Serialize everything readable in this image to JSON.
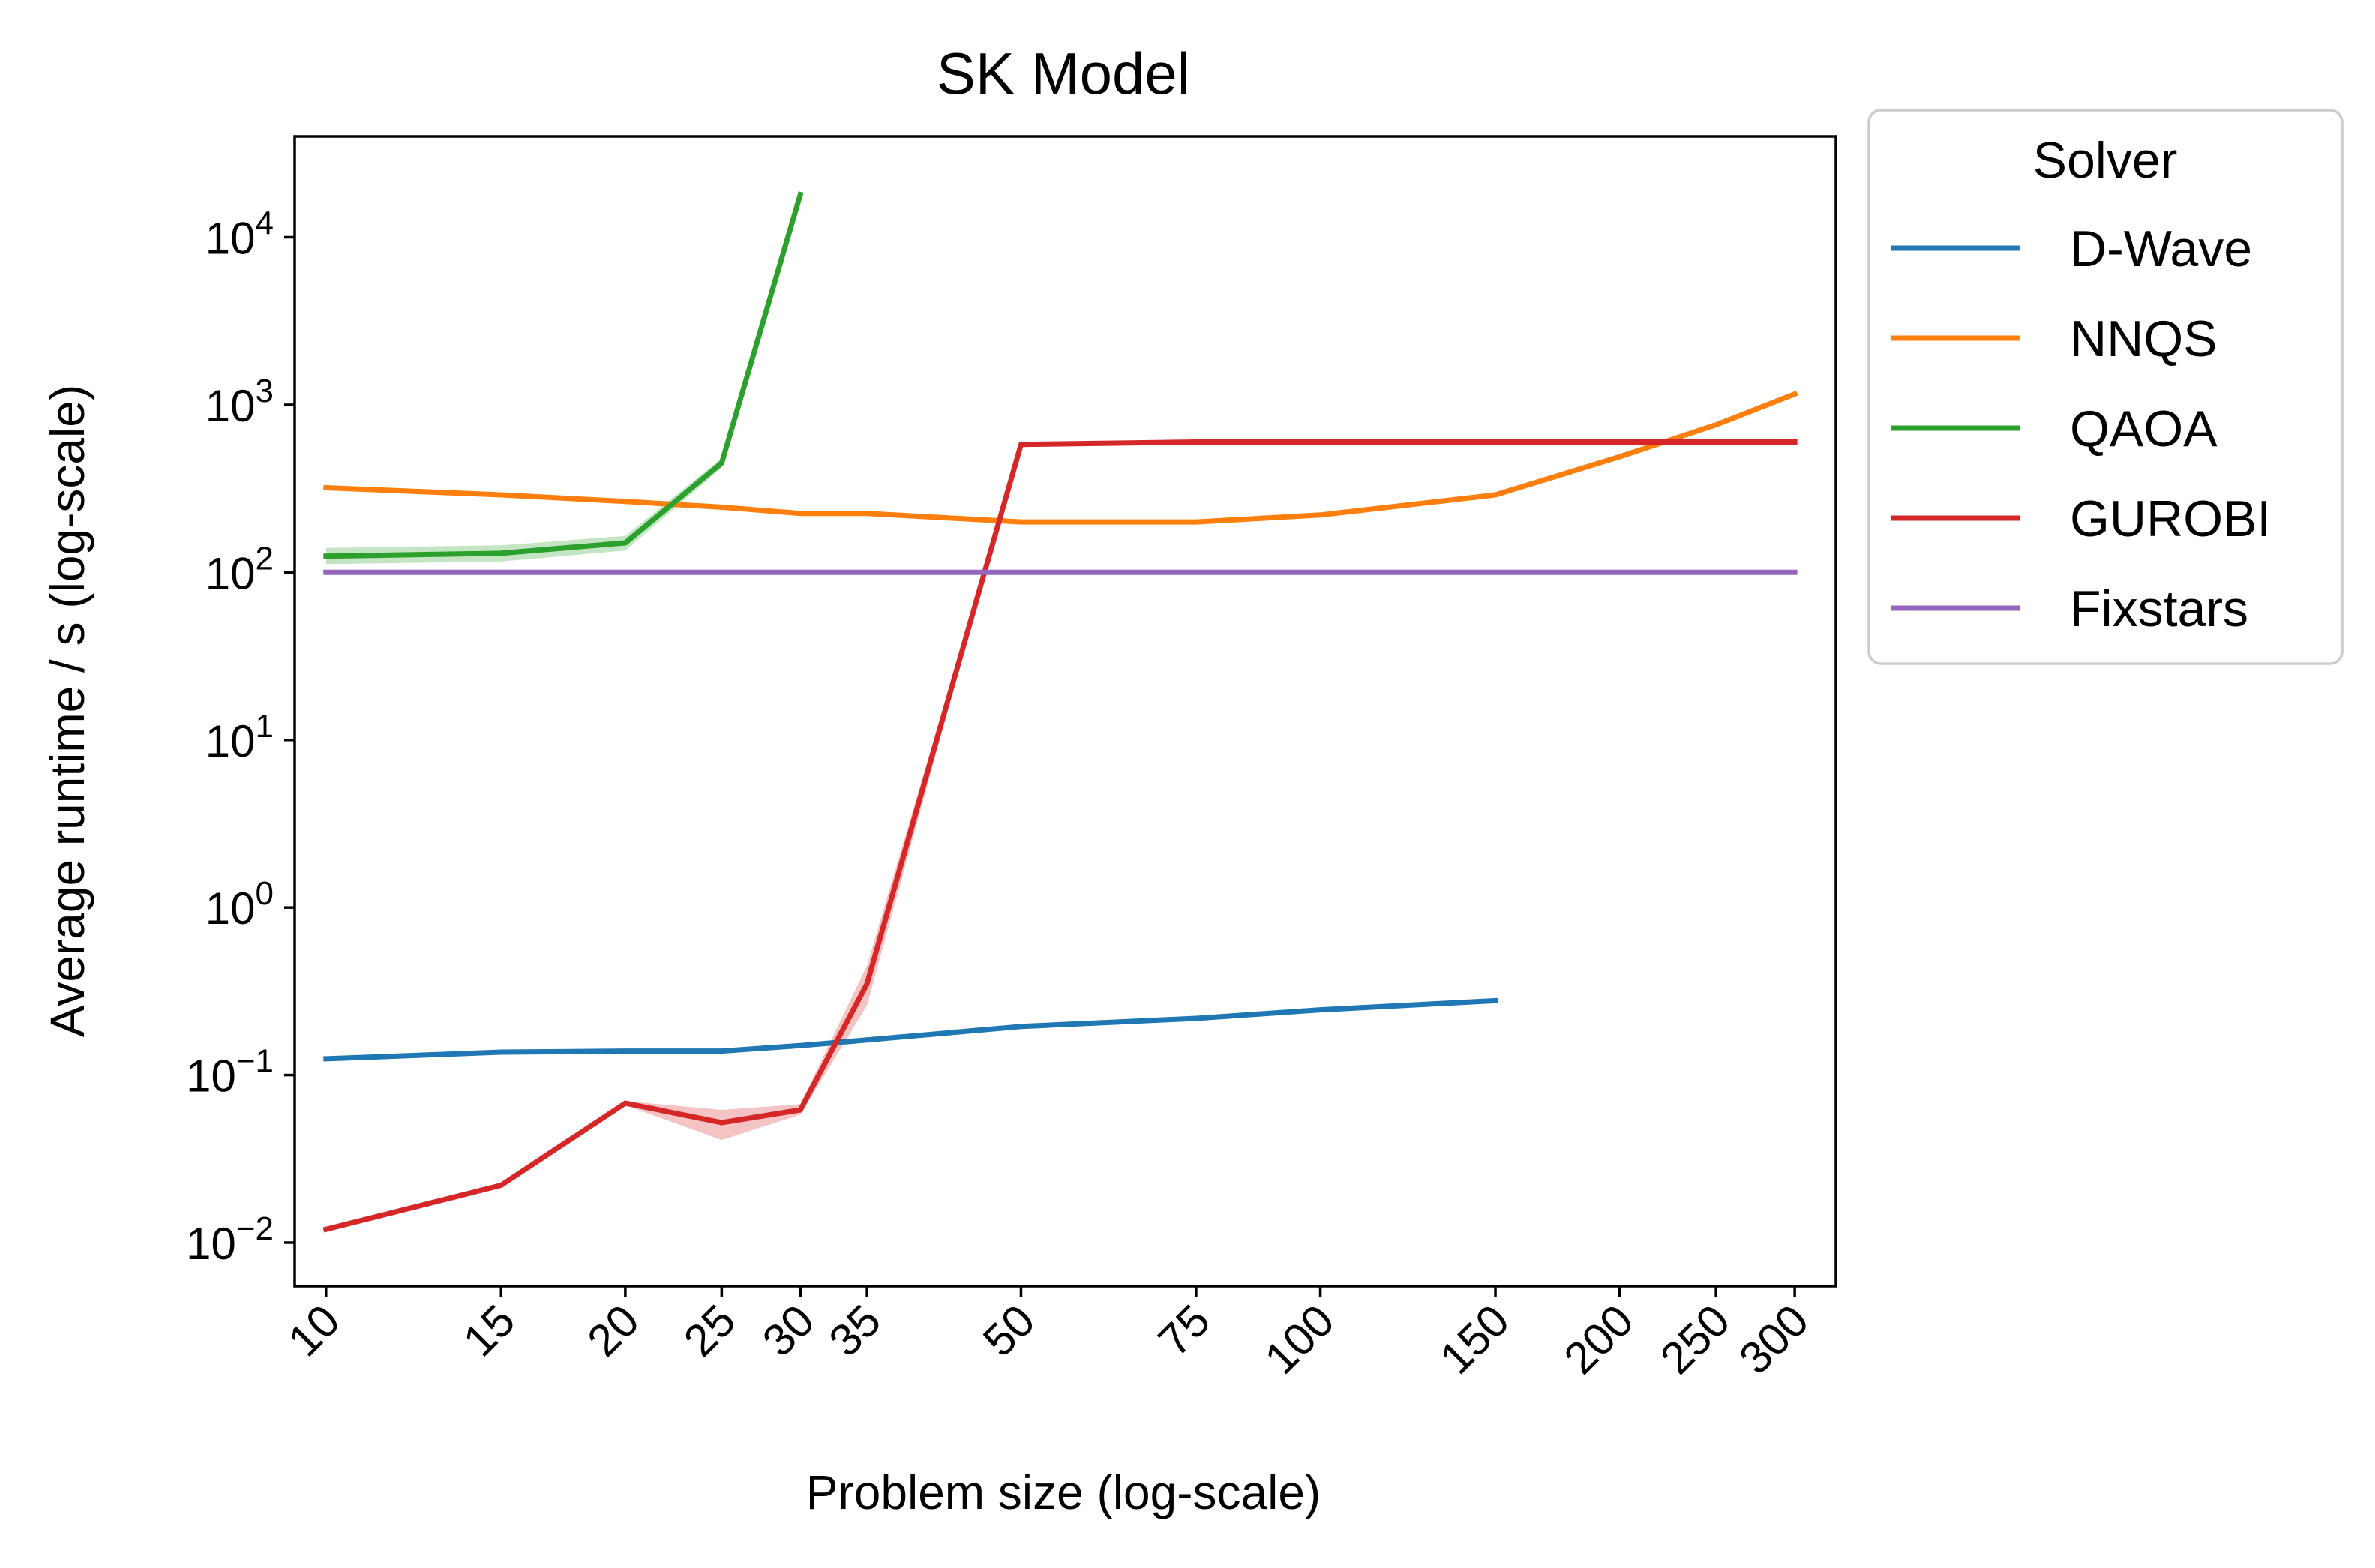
{
  "chart_data": {
    "type": "line",
    "title": "SK Model",
    "xlabel": "Problem size (log-scale)",
    "ylabel": "Average runtime / s (log-scale)",
    "x_scale": "log",
    "y_scale": "log",
    "xlim": [
      9.3,
      330
    ],
    "ylim": [
      0.0055,
      40000
    ],
    "x_ticks": [
      10,
      15,
      20,
      25,
      30,
      35,
      50,
      75,
      100,
      150,
      200,
      250,
      300
    ],
    "x_tick_labels": [
      "10",
      "15",
      "20",
      "25",
      "30",
      "35",
      "50",
      "75",
      "100",
      "150",
      "200",
      "250",
      "300"
    ],
    "y_ticks": [
      {
        "value": 0.01,
        "base": "10",
        "exp": "−2"
      },
      {
        "value": 0.1,
        "base": "10",
        "exp": "−1"
      },
      {
        "value": 1,
        "base": "10",
        "exp": "0"
      },
      {
        "value": 10,
        "base": "10",
        "exp": "1"
      },
      {
        "value": 100,
        "base": "10",
        "exp": "2"
      },
      {
        "value": 1000,
        "base": "10",
        "exp": "3"
      },
      {
        "value": 10000,
        "base": "10",
        "exp": "4"
      }
    ],
    "grid": false,
    "legend": {
      "title": "Solver",
      "placement": "outside upper right"
    },
    "series": [
      {
        "name": "D-Wave",
        "color": "#1f77b4",
        "x": [
          10,
          15,
          20,
          25,
          30,
          35,
          50,
          75,
          100,
          150
        ],
        "y": [
          0.125,
          0.137,
          0.139,
          0.139,
          0.15,
          0.162,
          0.195,
          0.218,
          0.245,
          0.278
        ]
      },
      {
        "name": "NNQS",
        "color": "#ff7f0e",
        "x": [
          10,
          15,
          20,
          25,
          30,
          35,
          50,
          75,
          100,
          150,
          200,
          250,
          300
        ],
        "y": [
          320,
          290,
          265,
          245,
          225,
          225,
          200,
          200,
          220,
          290,
          490,
          760,
          1160
        ]
      },
      {
        "name": "QAOA",
        "color": "#2ca02c",
        "x": [
          10,
          15,
          20,
          25,
          30
        ],
        "y": [
          125,
          130,
          150,
          450,
          18000
        ],
        "band_lower": [
          112,
          116,
          135,
          420,
          18000
        ],
        "band_upper": [
          140,
          145,
          165,
          480,
          18000
        ]
      },
      {
        "name": "GUROBI",
        "color": "#d62728",
        "x": [
          10,
          15,
          20,
          25,
          30,
          35,
          50,
          75,
          100,
          150,
          200,
          250,
          300
        ],
        "y": [
          0.012,
          0.022,
          0.068,
          0.052,
          0.062,
          0.35,
          580,
          600,
          600,
          600,
          600,
          600,
          600
        ],
        "band_lower": [
          0.012,
          0.022,
          0.066,
          0.041,
          0.058,
          0.26,
          580,
          600,
          600,
          600,
          600,
          600,
          600
        ],
        "band_upper": [
          0.012,
          0.022,
          0.07,
          0.062,
          0.067,
          0.45,
          580,
          600,
          600,
          600,
          600,
          600,
          600
        ]
      },
      {
        "name": "Fixstars",
        "color": "#9467bd",
        "x": [
          10,
          300
        ],
        "y": [
          100,
          100
        ]
      }
    ]
  }
}
